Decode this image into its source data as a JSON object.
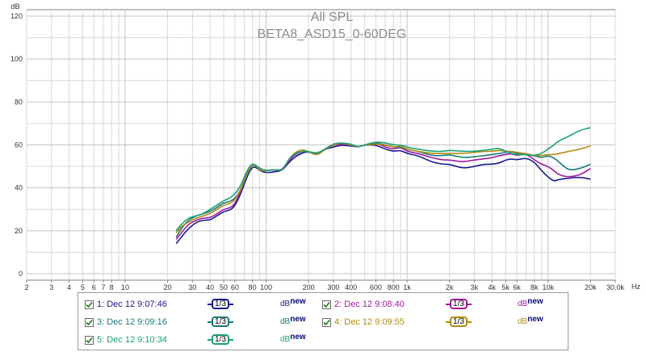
{
  "title": "All SPL",
  "subtitle": "BETA8_ASD15_0-60DEG",
  "y_unit": "dB",
  "x_unit": "Hz",
  "chart_data": {
    "type": "line",
    "xscale": "log",
    "xlim": [
      2,
      30000
    ],
    "ylim": [
      -3,
      123
    ],
    "yticks": [
      0,
      20,
      40,
      60,
      80,
      100,
      120
    ],
    "xticks": [
      {
        "v": 2,
        "label": "2"
      },
      {
        "v": 3,
        "label": "3"
      },
      {
        "v": 4,
        "label": "4"
      },
      {
        "v": 5,
        "label": "5"
      },
      {
        "v": 6,
        "label": "6"
      },
      {
        "v": 7,
        "label": "7"
      },
      {
        "v": 8,
        "label": "8"
      },
      {
        "v": 10,
        "label": "10"
      },
      {
        "v": 20,
        "label": "20"
      },
      {
        "v": 30,
        "label": "30"
      },
      {
        "v": 40,
        "label": "40"
      },
      {
        "v": 50,
        "label": "50"
      },
      {
        "v": 60,
        "label": "60"
      },
      {
        "v": 80,
        "label": "80"
      },
      {
        "v": 100,
        "label": "100"
      },
      {
        "v": 200,
        "label": "200"
      },
      {
        "v": 300,
        "label": "300"
      },
      {
        "v": 400,
        "label": "400"
      },
      {
        "v": 600,
        "label": "600"
      },
      {
        "v": 800,
        "label": "800"
      },
      {
        "v": 1000,
        "label": "1k"
      },
      {
        "v": 2000,
        "label": "2k"
      },
      {
        "v": 3000,
        "label": "3k"
      },
      {
        "v": 4000,
        "label": "4k"
      },
      {
        "v": 5000,
        "label": "5k"
      },
      {
        "v": 6000,
        "label": "6k"
      },
      {
        "v": 8000,
        "label": "8k"
      },
      {
        "v": 10000,
        "label": "10k"
      },
      {
        "v": 20000,
        "label": "20k"
      },
      {
        "v": 30000,
        "label": "30.0k"
      }
    ],
    "grid": true,
    "series": [
      {
        "name": "1: Dec 12 9:07:46",
        "color": "#1a1a8c",
        "x": [
          23,
          25,
          28,
          32,
          36,
          40,
          45,
          50,
          58,
          65,
          72,
          78,
          83,
          90,
          100,
          115,
          130,
          150,
          175,
          200,
          230,
          260,
          300,
          340,
          400,
          450,
          500,
          600,
          700,
          800,
          900,
          1000,
          1200,
          1500,
          1800,
          2000,
          2500,
          3000,
          3500,
          4000,
          4500,
          5000,
          5500,
          6000,
          7000,
          8000,
          9000,
          10000,
          11000,
          12000,
          14000,
          17000,
          20000
        ],
        "y": [
          14,
          17,
          21,
          24,
          25,
          25,
          27,
          29,
          30,
          36,
          44,
          49,
          50,
          48,
          47,
          47.5,
          48,
          53,
          56,
          57,
          55,
          58,
          59,
          60,
          59.5,
          59,
          60,
          60,
          58,
          57,
          57.5,
          56,
          55,
          52,
          51,
          51,
          49,
          50,
          51,
          51,
          51.5,
          53,
          53.5,
          53,
          54,
          52,
          48,
          45,
          43,
          44,
          44.5,
          45,
          44
        ]
      },
      {
        "name": "2: Dec 12 9:08:40",
        "color": "#a01aa0",
        "x": [
          23,
          25,
          28,
          32,
          36,
          40,
          45,
          50,
          58,
          65,
          72,
          78,
          83,
          90,
          100,
          115,
          130,
          150,
          175,
          200,
          230,
          260,
          300,
          340,
          400,
          450,
          500,
          600,
          700,
          800,
          900,
          1000,
          1200,
          1500,
          1800,
          2000,
          2500,
          3000,
          3500,
          4000,
          4500,
          5000,
          5500,
          6000,
          7000,
          8000,
          9000,
          10000,
          11000,
          12000,
          14000,
          17000,
          20000
        ],
        "y": [
          16,
          19,
          23,
          25,
          26,
          26,
          28,
          30,
          31,
          37,
          45,
          50,
          51,
          48,
          48,
          48.5,
          48,
          54,
          57,
          57,
          55,
          58,
          60,
          60.5,
          60,
          59,
          60,
          61,
          59,
          58,
          59,
          57,
          56,
          54,
          53,
          53,
          52,
          53,
          53.5,
          54,
          55,
          55.5,
          56,
          55,
          56,
          53,
          51,
          50,
          48,
          46,
          45,
          46,
          49
        ]
      },
      {
        "name": "3: Dec 12 9:09:16",
        "color": "#1a7a7a",
        "x": [
          23,
          25,
          28,
          32,
          36,
          40,
          45,
          50,
          58,
          65,
          72,
          78,
          83,
          90,
          100,
          115,
          130,
          150,
          175,
          200,
          230,
          260,
          300,
          340,
          400,
          450,
          500,
          600,
          700,
          800,
          900,
          1000,
          1200,
          1500,
          1800,
          2000,
          2500,
          3000,
          3500,
          4000,
          4500,
          5000,
          5500,
          6000,
          7000,
          8000,
          9000,
          10000,
          11000,
          12000,
          14000,
          17000,
          20000
        ],
        "y": [
          17,
          21,
          25,
          27,
          28,
          29,
          31,
          33,
          34,
          38,
          45,
          50,
          51,
          49,
          48,
          48.5,
          48,
          55,
          57,
          57,
          55,
          58,
          60.5,
          61,
          60,
          59,
          60,
          61,
          60,
          59,
          59,
          58,
          57,
          55,
          55,
          55.5,
          54,
          54.5,
          55,
          55.5,
          56,
          56.5,
          57,
          56,
          55.5,
          55,
          54,
          55,
          54,
          52,
          48,
          49,
          51
        ]
      },
      {
        "name": "4: Dec 12 9:09:55",
        "color": "#b08c10",
        "x": [
          23,
          25,
          28,
          32,
          36,
          40,
          45,
          50,
          58,
          65,
          72,
          78,
          83,
          90,
          100,
          115,
          130,
          150,
          175,
          200,
          230,
          260,
          300,
          340,
          400,
          450,
          500,
          600,
          700,
          800,
          900,
          1000,
          1200,
          1500,
          1800,
          2000,
          2500,
          3000,
          3500,
          4000,
          4500,
          5000,
          5500,
          6000,
          7000,
          8000,
          9000,
          10000,
          11000,
          12000,
          14000,
          17000,
          20000
        ],
        "y": [
          19,
          22,
          24,
          26,
          27,
          28,
          30,
          32,
          33,
          38,
          46,
          50,
          51,
          48,
          48,
          48.5,
          48,
          55,
          58,
          57,
          55,
          58,
          60,
          61,
          60,
          59,
          60,
          60.5,
          60,
          59,
          59.5,
          58,
          57,
          56,
          56,
          56,
          56,
          56.5,
          57,
          57,
          57.5,
          57,
          57,
          56.5,
          56,
          55,
          55,
          55.5,
          55.5,
          56,
          57,
          58,
          59.5
        ]
      },
      {
        "name": "5: Dec 12 9:10:34",
        "color": "#1aa078",
        "x": [
          23,
          25,
          28,
          32,
          36,
          40,
          45,
          50,
          58,
          65,
          72,
          78,
          83,
          90,
          100,
          115,
          130,
          150,
          175,
          200,
          230,
          260,
          300,
          340,
          400,
          450,
          500,
          600,
          700,
          800,
          900,
          1000,
          1200,
          1500,
          1800,
          2000,
          2500,
          3000,
          3500,
          4000,
          4500,
          5000,
          5500,
          6000,
          7000,
          8000,
          9000,
          10000,
          11000,
          12000,
          14000,
          17000,
          20000
        ],
        "y": [
          20,
          23,
          26,
          27,
          28,
          30,
          32,
          34,
          36,
          40,
          47,
          51,
          51,
          49,
          48,
          48.5,
          48,
          55,
          57,
          57,
          56,
          58,
          60.5,
          61,
          60.5,
          59,
          60,
          61.5,
          61,
          60,
          60,
          59,
          58,
          57,
          57,
          57.5,
          57,
          57,
          57.5,
          58,
          58.5,
          57,
          56,
          55.5,
          55.5,
          55,
          56,
          58,
          60,
          62,
          64,
          67,
          68
        ]
      }
    ]
  },
  "legend": {
    "entries": [
      {
        "label": "1: Dec 12 9:07:46",
        "checked": true,
        "color": "#1a1a8c",
        "octave": "1/3",
        "db_label": "dB",
        "new_label": "new"
      },
      {
        "label": "2: Dec 12 9:08:40",
        "checked": true,
        "color": "#a01aa0",
        "octave": "1/3",
        "db_label": "dB",
        "new_label": "new"
      },
      {
        "label": "3: Dec 12 9:09:16",
        "checked": true,
        "color": "#1a7a7a",
        "octave": "1/3",
        "db_label": "dB",
        "new_label": "new"
      },
      {
        "label": "4: Dec 12 9:09:55",
        "checked": true,
        "color": "#b08c10",
        "octave": "1/3",
        "db_label": "dB",
        "new_label": "new"
      },
      {
        "label": "5: Dec 12 9:10:34",
        "checked": true,
        "color": "#1aa078",
        "octave": "1/3",
        "db_label": "dB",
        "new_label": "new"
      }
    ]
  },
  "colors": {
    "grid": "#d8d8d8",
    "axis": "#7f7f7f",
    "title": "#8c8c8c",
    "text": "#333333"
  }
}
